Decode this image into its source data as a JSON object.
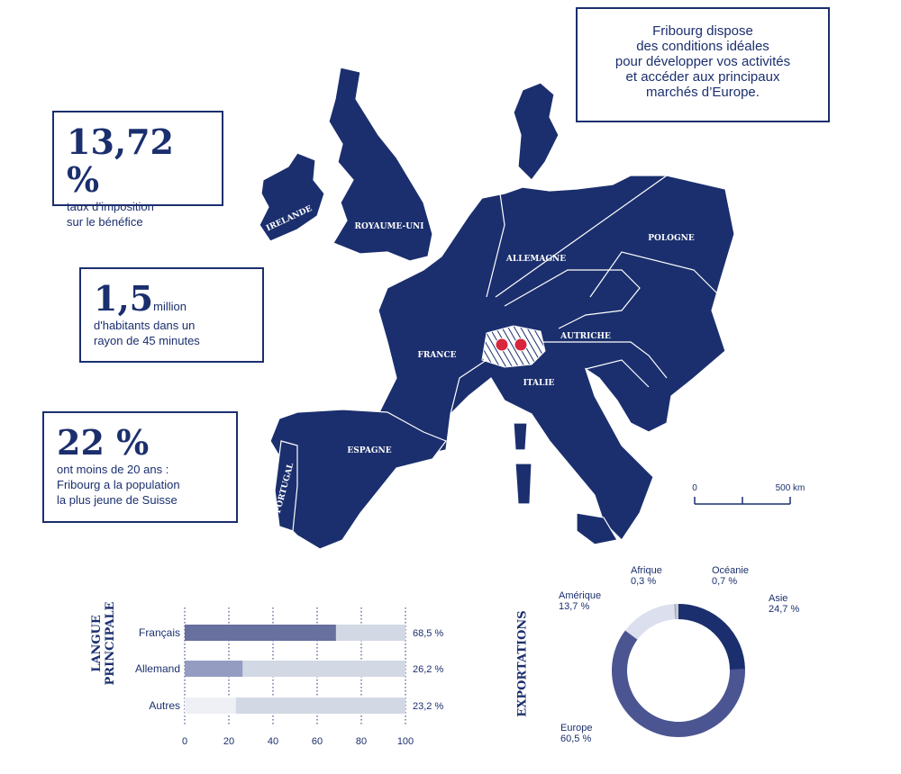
{
  "callout": {
    "lines": [
      "Fribourg dispose",
      "des conditions idéales",
      "pour développer vos activités",
      "et accéder aux principaux",
      "marchés d’Europe."
    ]
  },
  "stats": [
    {
      "figure": "13,72 %",
      "lines": [
        "taux d’imposition",
        "sur le bénéfice"
      ]
    },
    {
      "figure": "1,5",
      "unit": "million",
      "lines": [
        "d'habitants dans un",
        "rayon de 45 minutes"
      ]
    },
    {
      "figure": "22 %",
      "lines": [
        "ont moins de 20 ans :",
        "Fribourg a la population",
        "la plus jeune de Suisse"
      ]
    }
  ],
  "map": {
    "labels": [
      "IRELANDE",
      "ROYAUME-UNI",
      "ALLEMAGNE",
      "POLOGNE",
      "FRANCE",
      "AUTRICHE",
      "ITALIE",
      "ESPAGNE",
      "PORTUGAL"
    ],
    "scale": [
      "0",
      "500 km"
    ]
  },
  "chart_data": [
    {
      "type": "bar",
      "title": "LANGUE PRINCIPALE",
      "categories": [
        "Français",
        "Allemand",
        "Autres"
      ],
      "values": [
        68.5,
        26.2,
        23.2
      ],
      "value_labels": [
        "68,5 %",
        "26,2 %",
        "23,2 %"
      ],
      "colors": [
        "#67709f",
        "#959cc2",
        "#eef0f5"
      ],
      "track_color": "#d2d9e4",
      "xlim": [
        0,
        100
      ],
      "xticks": [
        0,
        20,
        40,
        60,
        80,
        100
      ],
      "grid": true
    },
    {
      "type": "pie",
      "title": "EXPORTATIONS",
      "categories": [
        "Asie",
        "Europe",
        "Amérique",
        "Afrique",
        "Océanie"
      ],
      "values": [
        24.7,
        60.5,
        13.7,
        0.3,
        0.7
      ],
      "value_labels": [
        "24,7 %",
        "60,5 %",
        "13,7 %",
        "0,3 %",
        "0,7 %"
      ],
      "colors": [
        "#1b2f6e",
        "#4b5591",
        "#dcdfee",
        "#9aa0b5",
        "#c4c7d2"
      ]
    }
  ]
}
